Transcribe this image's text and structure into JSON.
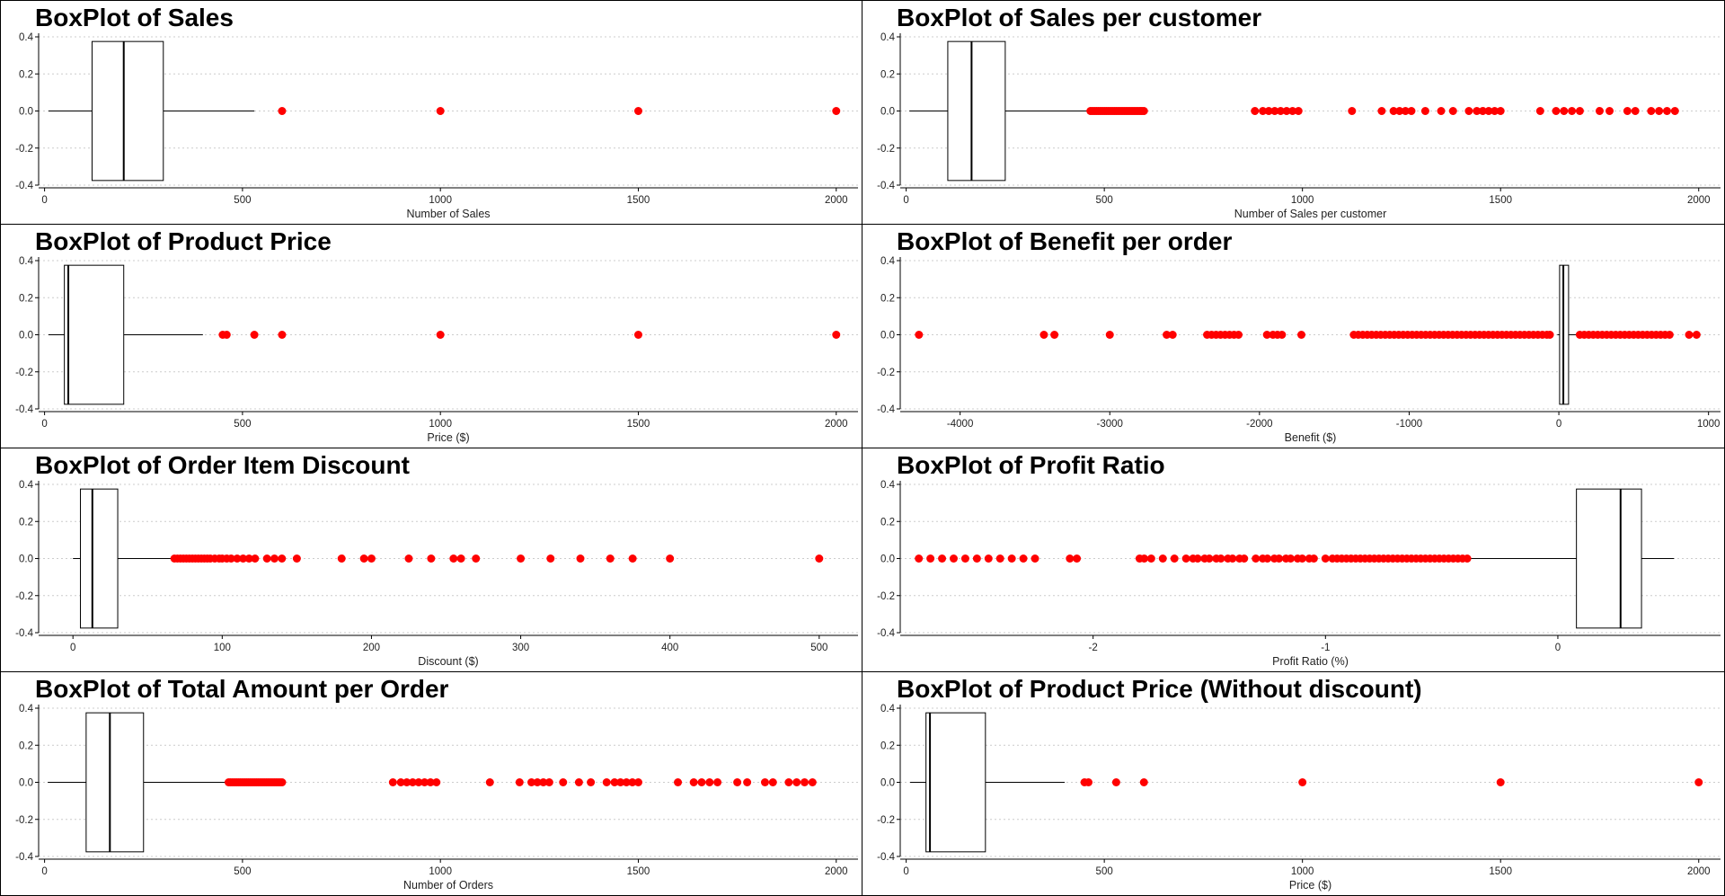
{
  "colors": {
    "outlier": "#ff0000",
    "axis": "#000000",
    "grid": "#cccccc"
  },
  "chart_data": [
    {
      "type": "boxplot",
      "title": "BoxPlot of Sales",
      "xlabel": "Number of Sales",
      "xlim": [
        -15,
        2055
      ],
      "ylim": [
        -0.4,
        0.4
      ],
      "xticks": [
        0,
        500,
        1000,
        1500,
        2000
      ],
      "xtick_labels": [
        "0",
        "500",
        "1000",
        "1500",
        "2000"
      ],
      "yticks": [
        0.4,
        0.2,
        0.0,
        -0.2,
        -0.4
      ],
      "ytick_labels": [
        "0.4",
        "0.2",
        "0.0",
        "-0.2",
        "-0.4"
      ],
      "grid": "horizontal dotted",
      "box": {
        "whisker_low": 10,
        "q1": 120,
        "median": 200,
        "q3": 300,
        "whisker_high": 530
      },
      "outliers": [
        600,
        1000,
        1500,
        2000
      ]
    },
    {
      "type": "boxplot",
      "title": "BoxPlot of Sales per customer",
      "xlabel": "Number of Sales per customer",
      "xlim": [
        -15,
        2055
      ],
      "ylim": [
        -0.4,
        0.4
      ],
      "xticks": [
        0,
        500,
        1000,
        1500,
        2000
      ],
      "xtick_labels": [
        "0",
        "500",
        "1000",
        "1500",
        "2000"
      ],
      "yticks": [
        0.4,
        0.2,
        0.0,
        -0.2,
        -0.4
      ],
      "ytick_labels": [
        "0.4",
        "0.2",
        "0.0",
        "-0.2",
        "-0.4"
      ],
      "grid": "horizontal dotted",
      "box": {
        "whisker_low": 8,
        "q1": 105,
        "median": 165,
        "q3": 250,
        "whisker_high": 458
      },
      "outliers": [
        465,
        470,
        475,
        480,
        485,
        490,
        495,
        500,
        505,
        510,
        515,
        520,
        525,
        530,
        535,
        540,
        545,
        550,
        555,
        560,
        565,
        570,
        575,
        580,
        585,
        590,
        595,
        600,
        880,
        900,
        915,
        930,
        945,
        960,
        975,
        990,
        1125,
        1200,
        1230,
        1245,
        1260,
        1275,
        1310,
        1350,
        1380,
        1420,
        1440,
        1455,
        1470,
        1485,
        1500,
        1600,
        1640,
        1660,
        1680,
        1700,
        1750,
        1775,
        1820,
        1840,
        1880,
        1900,
        1920,
        1940
      ]
    },
    {
      "type": "boxplot",
      "title": "BoxPlot of Product Price",
      "xlabel": "Price ($)",
      "xlim": [
        -15,
        2055
      ],
      "ylim": [
        -0.4,
        0.4
      ],
      "xticks": [
        0,
        500,
        1000,
        1500,
        2000
      ],
      "xtick_labels": [
        "0",
        "500",
        "1000",
        "1500",
        "2000"
      ],
      "yticks": [
        0.4,
        0.2,
        0.0,
        -0.2,
        -0.4
      ],
      "ytick_labels": [
        "0.4",
        "0.2",
        "0.0",
        "-0.2",
        "-0.4"
      ],
      "grid": "horizontal dotted",
      "box": {
        "whisker_low": 10,
        "q1": 50,
        "median": 60,
        "q3": 200,
        "whisker_high": 400
      },
      "outliers": [
        450,
        460,
        530,
        600,
        1000,
        1500,
        2000
      ]
    },
    {
      "type": "boxplot",
      "title": "BoxPlot of Benefit per order",
      "xlabel": "Benefit ($)",
      "xlim": [
        -4400,
        1080
      ],
      "ylim": [
        -0.4,
        0.4
      ],
      "xticks": [
        -4000,
        -3000,
        -2000,
        -1000,
        0,
        1000
      ],
      "xtick_labels": [
        "-4000",
        "-3000",
        "-2000",
        "-1000",
        "0",
        "1000"
      ],
      "yticks": [
        0.4,
        0.2,
        0.0,
        -0.2,
        -0.4
      ],
      "ytick_labels": [
        "0.4",
        "0.2",
        "0.0",
        "-0.2",
        "-0.4"
      ],
      "grid": "horizontal dotted",
      "box": {
        "whisker_low": -10,
        "q1": 5,
        "median": 30,
        "q3": 65,
        "whisker_high": 130
      },
      "outliers": [
        -4275,
        -3440,
        -3370,
        -3000,
        -2620,
        -2580,
        -2350,
        -2320,
        -2290,
        -2260,
        -2230,
        -2200,
        -2170,
        -2140,
        -1950,
        -1910,
        -1880,
        -1850,
        -1720,
        -1370,
        -1340,
        -1310,
        -1280,
        -1250,
        -1220,
        -1190,
        -1160,
        -1130,
        -1100,
        -1070,
        -1040,
        -1010,
        -980,
        -950,
        -920,
        -890,
        -860,
        -830,
        -800,
        -770,
        -740,
        -710,
        -680,
        -650,
        -620,
        -590,
        -560,
        -530,
        -500,
        -470,
        -440,
        -410,
        -380,
        -350,
        -320,
        -290,
        -260,
        -230,
        -200,
        -170,
        -140,
        -110,
        -80,
        -60,
        140,
        170,
        200,
        230,
        260,
        290,
        320,
        350,
        380,
        410,
        440,
        470,
        500,
        530,
        560,
        590,
        620,
        650,
        680,
        710,
        740,
        870,
        920
      ]
    },
    {
      "type": "boxplot",
      "title": "BoxPlot of Order Item Discount",
      "xlabel": "Discount ($)",
      "xlim": [
        -23,
        526
      ],
      "ylim": [
        -0.4,
        0.4
      ],
      "xticks": [
        0,
        100,
        200,
        300,
        400,
        500
      ],
      "xtick_labels": [
        "0",
        "100",
        "200",
        "300",
        "400",
        "500"
      ],
      "yticks": [
        0.4,
        0.2,
        0.0,
        -0.2,
        -0.4
      ],
      "ytick_labels": [
        "0.4",
        "0.2",
        "0.0",
        "-0.2",
        "-0.4"
      ],
      "grid": "horizontal dotted",
      "box": {
        "whisker_low": 0,
        "q1": 5,
        "median": 13,
        "q3": 30,
        "whisker_high": 66
      },
      "outliers": [
        68,
        70,
        72,
        74,
        76,
        78,
        80,
        82,
        84,
        86,
        88,
        90,
        92,
        95,
        98,
        100,
        103,
        106,
        110,
        114,
        118,
        122,
        130,
        135,
        140,
        150,
        180,
        195,
        200,
        225,
        240,
        255,
        260,
        270,
        300,
        320,
        340,
        360,
        375,
        400,
        500
      ]
    },
    {
      "type": "boxplot",
      "title": "BoxPlot of Profit Ratio",
      "xlabel": "Profit Ratio (%)",
      "xlim": [
        -2.83,
        0.7
      ],
      "ylim": [
        -0.4,
        0.4
      ],
      "xticks": [
        -2,
        -1,
        0
      ],
      "xtick_labels": [
        "-2",
        "-1",
        "0"
      ],
      "yticks": [
        0.4,
        0.2,
        0.0,
        -0.2,
        -0.4
      ],
      "ytick_labels": [
        "0.4",
        "0.2",
        "0.0",
        "-0.2",
        "-0.4"
      ],
      "grid": "horizontal dotted",
      "box": {
        "whisker_low": -0.38,
        "q1": 0.08,
        "median": 0.27,
        "q3": 0.36,
        "whisker_high": 0.5
      },
      "outliers": [
        -2.75,
        -2.7,
        -2.65,
        -2.6,
        -2.55,
        -2.5,
        -2.45,
        -2.4,
        -2.35,
        -2.3,
        -2.25,
        -2.1,
        -2.07,
        -1.8,
        -1.78,
        -1.75,
        -1.7,
        -1.65,
        -1.6,
        -1.57,
        -1.55,
        -1.52,
        -1.5,
        -1.47,
        -1.45,
        -1.42,
        -1.4,
        -1.37,
        -1.35,
        -1.3,
        -1.27,
        -1.25,
        -1.22,
        -1.2,
        -1.17,
        -1.15,
        -1.12,
        -1.1,
        -1.07,
        -1.05,
        -1.0,
        -0.97,
        -0.95,
        -0.93,
        -0.91,
        -0.89,
        -0.87,
        -0.85,
        -0.83,
        -0.81,
        -0.79,
        -0.77,
        -0.75,
        -0.73,
        -0.71,
        -0.69,
        -0.67,
        -0.65,
        -0.63,
        -0.61,
        -0.59,
        -0.57,
        -0.55,
        -0.53,
        -0.51,
        -0.49,
        -0.47,
        -0.45,
        -0.43,
        -0.41,
        -0.39
      ]
    },
    {
      "type": "boxplot",
      "title": "BoxPlot of Total Amount per Order",
      "xlabel": "Number of Orders",
      "xlim": [
        -15,
        2055
      ],
      "ylim": [
        -0.4,
        0.4
      ],
      "xticks": [
        0,
        500,
        1000,
        1500,
        2000
      ],
      "xtick_labels": [
        "0",
        "500",
        "1000",
        "1500",
        "2000"
      ],
      "yticks": [
        0.4,
        0.2,
        0.0,
        -0.2,
        -0.4
      ],
      "ytick_labels": [
        "0.4",
        "0.2",
        "0.0",
        "-0.2",
        "-0.4"
      ],
      "grid": "horizontal dotted",
      "box": {
        "whisker_low": 8,
        "q1": 105,
        "median": 165,
        "q3": 250,
        "whisker_high": 458
      },
      "outliers": [
        465,
        470,
        475,
        480,
        485,
        490,
        495,
        500,
        505,
        510,
        515,
        520,
        525,
        530,
        535,
        540,
        545,
        550,
        555,
        560,
        565,
        570,
        575,
        580,
        585,
        590,
        595,
        600,
        880,
        900,
        915,
        930,
        945,
        960,
        975,
        990,
        1125,
        1200,
        1230,
        1245,
        1260,
        1275,
        1310,
        1350,
        1380,
        1420,
        1440,
        1455,
        1470,
        1485,
        1500,
        1600,
        1640,
        1660,
        1680,
        1700,
        1750,
        1775,
        1820,
        1840,
        1880,
        1900,
        1920,
        1940
      ]
    },
    {
      "type": "boxplot",
      "title": "BoxPlot of Product Price (Without discount)",
      "xlabel": "Price ($)",
      "xlim": [
        -15,
        2055
      ],
      "ylim": [
        -0.4,
        0.4
      ],
      "xticks": [
        0,
        500,
        1000,
        1500,
        2000
      ],
      "xtick_labels": [
        "0",
        "500",
        "1000",
        "1500",
        "2000"
      ],
      "yticks": [
        0.4,
        0.2,
        0.0,
        -0.2,
        -0.4
      ],
      "ytick_labels": [
        "0.4",
        "0.2",
        "0.0",
        "-0.2",
        "-0.4"
      ],
      "grid": "horizontal dotted",
      "box": {
        "whisker_low": 10,
        "q1": 50,
        "median": 60,
        "q3": 200,
        "whisker_high": 400
      },
      "outliers": [
        450,
        460,
        530,
        600,
        1000,
        1500,
        2000
      ]
    }
  ]
}
